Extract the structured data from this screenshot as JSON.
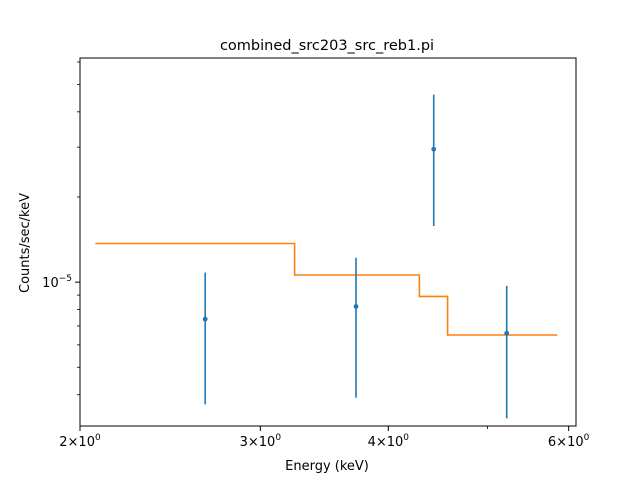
{
  "chart_data": {
    "type": "scatter",
    "title": "combined_src203_src_reb1.pi",
    "xlabel": "Energy (keV)",
    "ylabel": "Counts/sec/keV",
    "xscale": "log",
    "yscale": "log",
    "xlim": [
      2.0,
      6.1
    ],
    "ylim": [
      3.1e-06,
      6.2e-05
    ],
    "grid": false,
    "xticks": [
      {
        "value": 2,
        "base": "2",
        "exp": "0"
      },
      {
        "value": 3,
        "base": "3",
        "exp": "0"
      },
      {
        "value": 4,
        "base": "4",
        "exp": "0"
      },
      {
        "value": 6,
        "base": "6",
        "exp": "0"
      }
    ],
    "xminor_ticks": [
      5
    ],
    "yticks": [
      {
        "value": 1e-05,
        "base": "10",
        "exp": "−5"
      }
    ],
    "yminor_ticks": [
      4e-06,
      5e-06,
      6e-06,
      7e-06,
      8e-06,
      9e-06,
      2e-05,
      3e-05,
      4e-05,
      5e-05,
      6e-05
    ],
    "series": [
      {
        "kind": "errorbar",
        "color": "#1f77b4",
        "points": [
          {
            "x": 2.65,
            "y": 7.4e-06,
            "ylow": 3.7e-06,
            "yhigh": 1.08e-05
          },
          {
            "x": 3.72,
            "y": 8.2e-06,
            "ylow": 3.9e-06,
            "yhigh": 1.22e-05
          },
          {
            "x": 4.43,
            "y": 2.95e-05,
            "ylow": 1.58e-05,
            "yhigh": 4.6e-05
          },
          {
            "x": 5.22,
            "y": 6.6e-06,
            "ylow": 3.3e-06,
            "yhigh": 9.7e-06
          }
        ]
      },
      {
        "kind": "step",
        "color": "#ff7f0e",
        "steps": [
          {
            "x0": 2.07,
            "x1": 3.24,
            "y": 1.37e-05
          },
          {
            "x0": 3.24,
            "x1": 4.29,
            "y": 1.06e-05
          },
          {
            "x0": 4.29,
            "x1": 4.57,
            "y": 8.9e-06
          },
          {
            "x0": 4.57,
            "x1": 5.85,
            "y": 6.5e-06
          }
        ]
      }
    ]
  }
}
